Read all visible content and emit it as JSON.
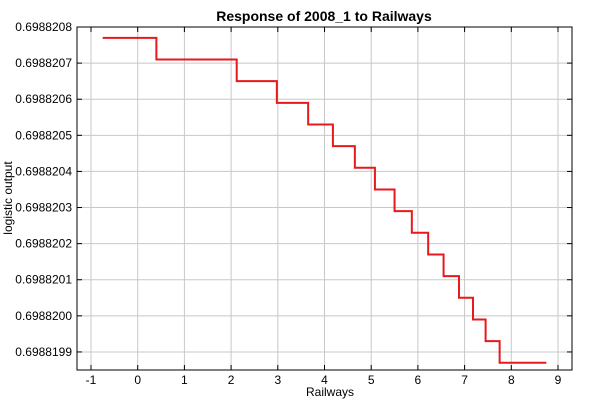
{
  "chart_data": {
    "type": "line",
    "title": "Response of 2008_1 to Railways",
    "xlabel": "Railways",
    "ylabel": "logistic output",
    "xlim": [
      -1.3,
      9.3
    ],
    "ylim": [
      0.69881985,
      0.6988208
    ],
    "xticks": [
      -1,
      0,
      1,
      2,
      3,
      4,
      5,
      6,
      7,
      8,
      9
    ],
    "xtick_labels": [
      "-1",
      "0",
      "1",
      "2",
      "3",
      "4",
      "5",
      "6",
      "7",
      "8",
      "9"
    ],
    "yticks": [
      0.6988199,
      0.69882,
      0.6988201,
      0.6988202,
      0.6988203,
      0.6988204,
      0.6988205,
      0.6988206,
      0.6988207,
      0.6988208
    ],
    "ytick_labels": [
      "0.6988199",
      "0.6988200",
      "0.6988201",
      "0.6988202",
      "0.6988203",
      "0.6988204",
      "0.6988205",
      "0.6988206",
      "0.6988207",
      "0.6988208"
    ],
    "grid": true,
    "line_color": "#e8191c",
    "series": [
      {
        "x": [
          -0.75,
          0.4,
          0.4,
          2.12,
          2.12,
          2.98,
          2.98,
          3.65,
          3.65,
          4.18,
          4.18,
          4.65,
          4.65,
          5.08,
          5.08,
          5.5,
          5.5,
          5.87,
          5.87,
          6.22,
          6.22,
          6.55,
          6.55,
          6.88,
          6.88,
          7.18,
          7.18,
          7.45,
          7.45,
          7.75,
          7.75,
          8.75
        ],
        "y": [
          0.69882077,
          0.69882077,
          0.69882071,
          0.69882071,
          0.69882065,
          0.69882065,
          0.69882059,
          0.69882059,
          0.69882053,
          0.69882053,
          0.69882047,
          0.69882047,
          0.69882041,
          0.69882041,
          0.69882035,
          0.69882035,
          0.69882029,
          0.69882029,
          0.69882023,
          0.69882023,
          0.69882017,
          0.69882017,
          0.69882011,
          0.69882011,
          0.69882005,
          0.69882005,
          0.69881999,
          0.69881999,
          0.69881993,
          0.69881993,
          0.69881987,
          0.69881987
        ]
      }
    ]
  }
}
